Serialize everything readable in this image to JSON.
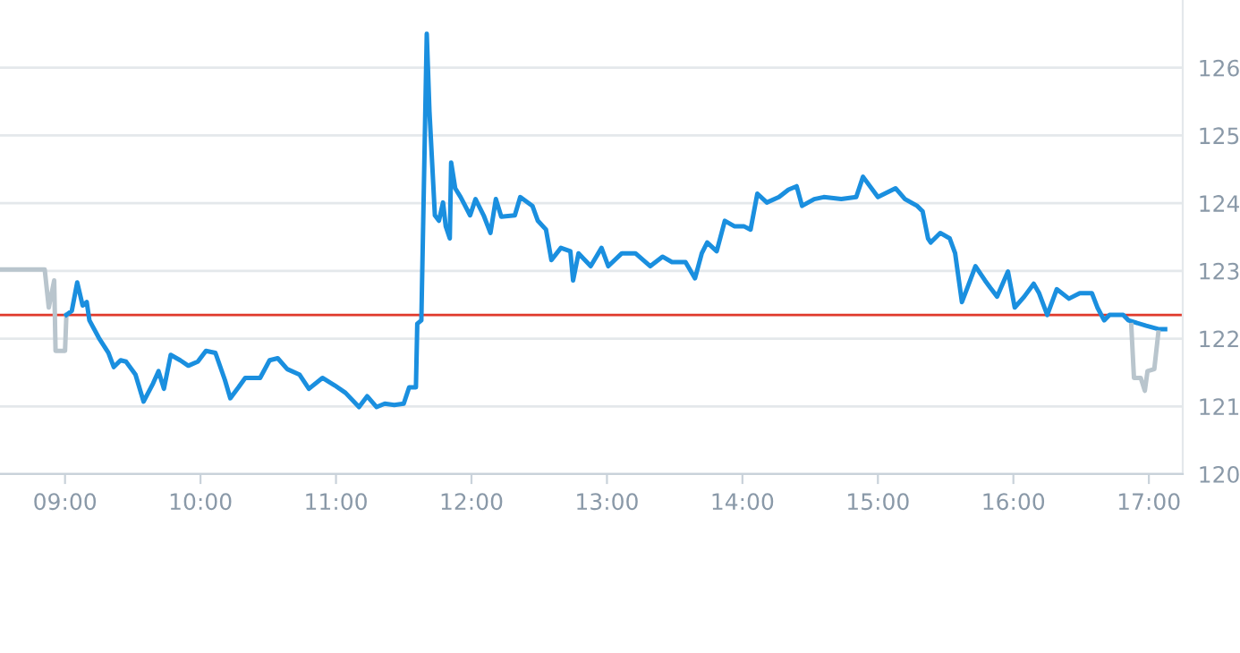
{
  "chart_data": {
    "type": "line",
    "xlim": [
      8.52,
      17.25
    ],
    "ylim": [
      120,
      127
    ],
    "xticks": [
      {
        "value": 9,
        "label": "09:00"
      },
      {
        "value": 10,
        "label": "10:00"
      },
      {
        "value": 11,
        "label": "11:00"
      },
      {
        "value": 12,
        "label": "12:00"
      },
      {
        "value": 13,
        "label": "13:00"
      },
      {
        "value": 14,
        "label": "14:00"
      },
      {
        "value": 15,
        "label": "15:00"
      },
      {
        "value": 16,
        "label": "16:00"
      },
      {
        "value": 17,
        "label": "17:00"
      }
    ],
    "yticks": [
      120,
      121,
      122,
      123,
      124,
      125,
      126
    ],
    "grid": "y",
    "ref_lines": [
      {
        "axis": "y",
        "value": 122.35,
        "color": "#e0392b"
      }
    ],
    "series": [
      {
        "color": "#b9c5cd",
        "x": [
          8.52,
          8.85,
          8.88,
          8.92,
          8.93,
          9.0,
          9.01
        ],
        "values": [
          123.02,
          123.02,
          122.46,
          122.86,
          121.82,
          121.82,
          122.35
        ]
      },
      {
        "color": "#1a8fdf",
        "x": [
          9.01,
          9.05,
          9.09,
          9.13,
          9.16,
          9.18,
          9.25,
          9.32,
          9.36,
          9.41,
          9.45,
          9.52,
          9.58,
          9.65,
          9.69,
          9.73,
          9.78,
          9.85,
          9.91,
          9.98,
          10.04,
          10.11,
          10.18,
          10.22,
          10.28,
          10.33,
          10.44,
          10.51,
          10.57,
          10.64,
          10.73,
          10.8,
          10.9,
          10.99,
          11.07,
          11.17,
          11.23,
          11.3,
          11.36,
          11.43,
          11.5,
          11.54,
          11.59,
          11.6,
          11.63,
          11.67,
          11.69,
          11.73,
          11.76,
          11.79,
          11.81,
          11.84,
          11.85,
          11.88,
          11.92,
          11.99,
          12.03,
          12.09,
          12.14,
          12.18,
          12.22,
          12.32,
          12.36,
          12.45,
          12.49,
          12.55,
          12.59,
          12.66,
          12.73,
          12.75,
          12.79,
          12.88,
          12.96,
          13.01,
          13.11,
          13.21,
          13.32,
          13.41,
          13.48,
          13.58,
          13.65,
          13.7,
          13.74,
          13.81,
          13.87,
          13.94,
          14.01,
          14.06,
          14.11,
          14.18,
          14.27,
          14.34,
          14.4,
          14.44,
          14.53,
          14.6,
          14.73,
          14.84,
          14.89,
          15.0,
          15.13,
          15.2,
          15.29,
          15.33,
          15.37,
          15.39,
          15.46,
          15.53,
          15.57,
          15.62,
          15.66,
          15.72,
          15.79,
          15.83,
          15.88,
          15.96,
          16.01,
          16.08,
          16.15,
          16.19,
          16.25,
          16.32,
          16.41,
          16.49,
          16.58,
          16.62,
          16.67,
          16.71,
          16.81,
          16.85,
          16.98,
          17.07,
          17.12
        ],
        "values": [
          122.35,
          122.41,
          122.83,
          122.49,
          122.54,
          122.27,
          122.01,
          121.79,
          121.58,
          121.68,
          121.66,
          121.47,
          121.07,
          121.34,
          121.52,
          121.26,
          121.76,
          121.68,
          121.6,
          121.66,
          121.82,
          121.79,
          121.39,
          121.12,
          121.28,
          121.42,
          121.42,
          121.68,
          121.71,
          121.55,
          121.47,
          121.26,
          121.42,
          121.31,
          121.2,
          120.99,
          121.15,
          120.99,
          121.04,
          121.02,
          121.04,
          121.28,
          121.28,
          122.22,
          122.27,
          126.5,
          125.35,
          123.82,
          123.74,
          124.01,
          123.66,
          123.48,
          124.6,
          124.22,
          124.09,
          123.82,
          124.06,
          123.82,
          123.56,
          124.06,
          123.8,
          123.82,
          124.09,
          123.96,
          123.74,
          123.61,
          123.16,
          123.34,
          123.29,
          122.86,
          123.26,
          123.07,
          123.34,
          123.07,
          123.26,
          123.26,
          123.07,
          123.21,
          123.13,
          123.13,
          122.89,
          123.26,
          123.42,
          123.29,
          123.74,
          123.66,
          123.66,
          123.61,
          124.14,
          124.01,
          124.09,
          124.2,
          124.25,
          123.96,
          124.06,
          124.09,
          124.06,
          124.09,
          124.39,
          124.09,
          124.22,
          124.06,
          123.96,
          123.88,
          123.48,
          123.42,
          123.56,
          123.48,
          123.26,
          122.54,
          122.75,
          123.07,
          122.86,
          122.75,
          122.62,
          122.99,
          122.46,
          122.62,
          122.81,
          122.67,
          122.35,
          122.73,
          122.59,
          122.67,
          122.67,
          122.46,
          122.27,
          122.35,
          122.35,
          122.27,
          122.19,
          122.14,
          122.14
        ]
      },
      {
        "color": "#b9c5cd",
        "x": [
          16.87,
          16.89,
          16.94,
          16.97,
          16.99,
          17.04,
          17.07
        ],
        "values": [
          122.2,
          121.42,
          121.42,
          121.23,
          121.52,
          121.55,
          122.09
        ]
      }
    ]
  }
}
